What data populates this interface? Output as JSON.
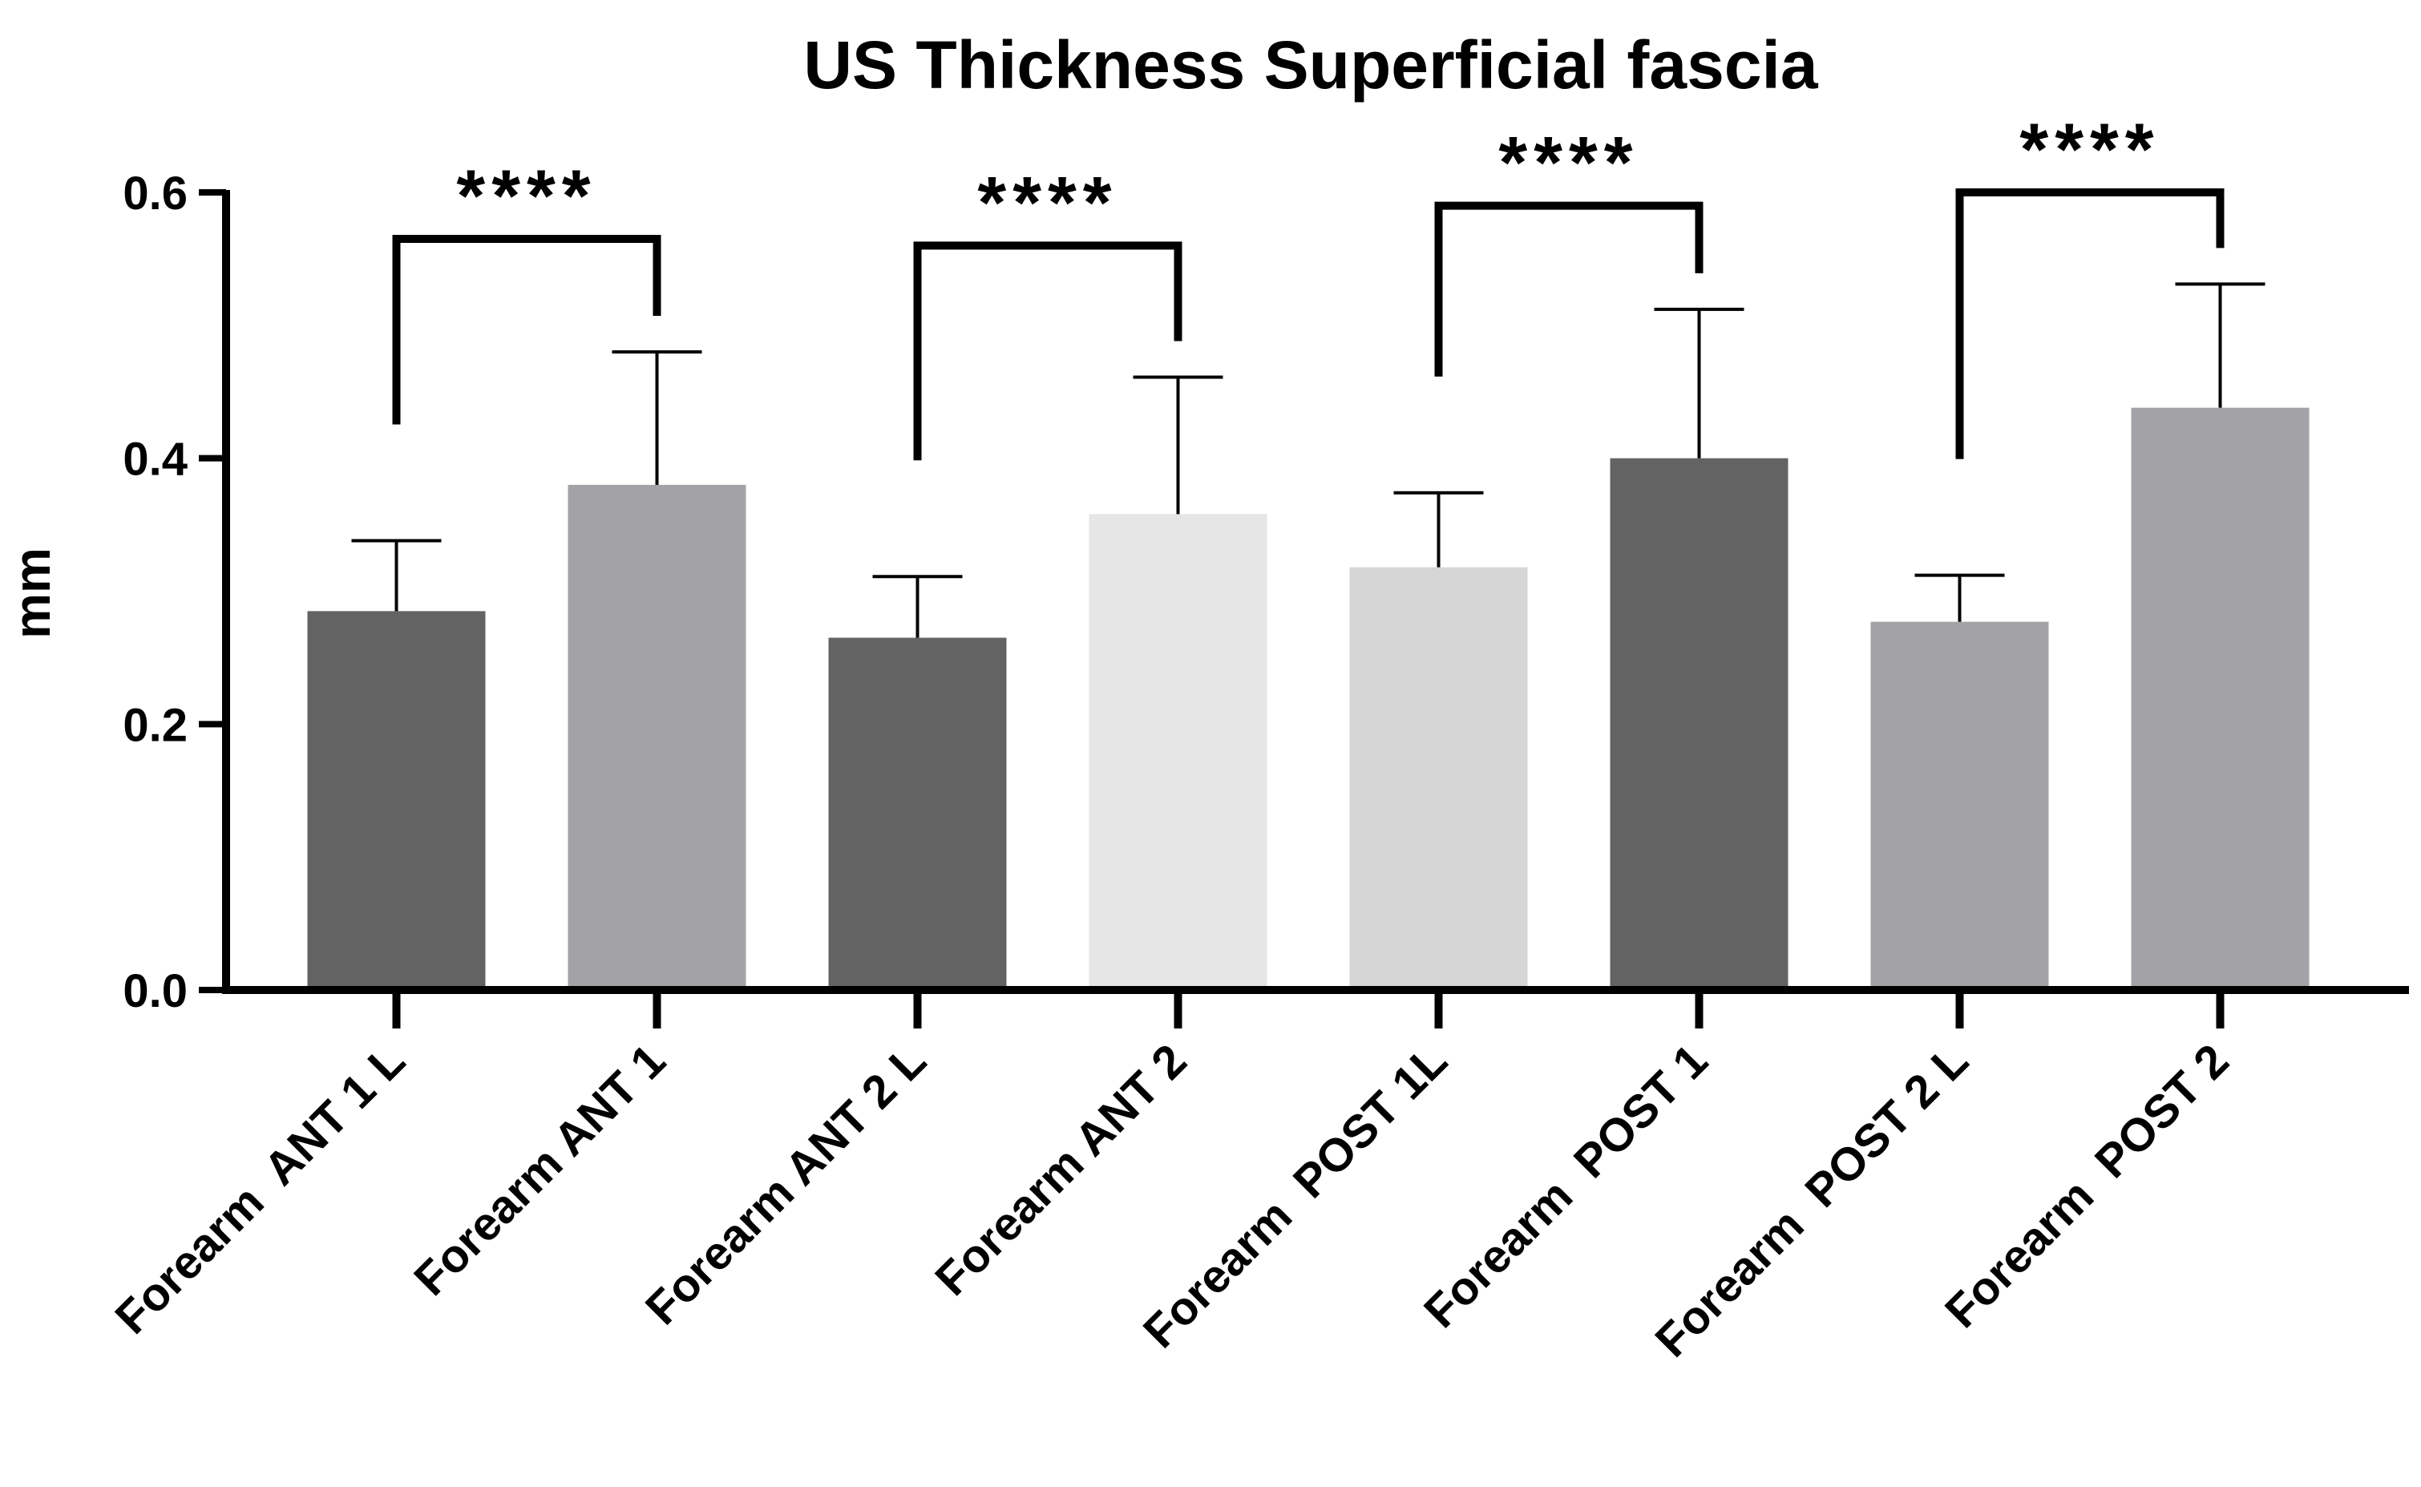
{
  "chart_data": {
    "type": "bar",
    "title": "US Thickness Superficial fascia",
    "ylabel": "mm",
    "xlabel": "",
    "ylim": [
      0,
      0.6
    ],
    "yticks": [
      "0.0",
      "0.2",
      "0.4",
      "0.6"
    ],
    "ytick_values": [
      0.0,
      0.2,
      0.4,
      0.6
    ],
    "categories": [
      "Forearm  ANT 1 L",
      "Forearm ANT 1",
      "Forearm ANT 2 L",
      "Forearm ANT 2",
      "Forearm  POST 1L",
      "Forearm  POST 1",
      "Forearm  POST 2 L",
      "Forearm  POST 2"
    ],
    "values": [
      0.285,
      0.38,
      0.265,
      0.358,
      0.318,
      0.4,
      0.277,
      0.438
    ],
    "errors": [
      0.053,
      0.1,
      0.046,
      0.103,
      0.056,
      0.112,
      0.035,
      0.093
    ],
    "bar_colors": [
      "#636363",
      "#a3a3a7",
      "#636363",
      "#e6e6e6",
      "#d6d6d6",
      "#636363",
      "#a3a3a7",
      "#a3a3a7"
    ],
    "significance": [
      {
        "pair": [
          0,
          1
        ],
        "label": "****",
        "level": 0.565
      },
      {
        "pair": [
          2,
          3
        ],
        "label": "****",
        "level": 0.56
      },
      {
        "pair": [
          4,
          5
        ],
        "label": "****",
        "level": 0.59
      },
      {
        "pair": [
          6,
          7
        ],
        "label": "****",
        "level": 0.6
      }
    ]
  }
}
